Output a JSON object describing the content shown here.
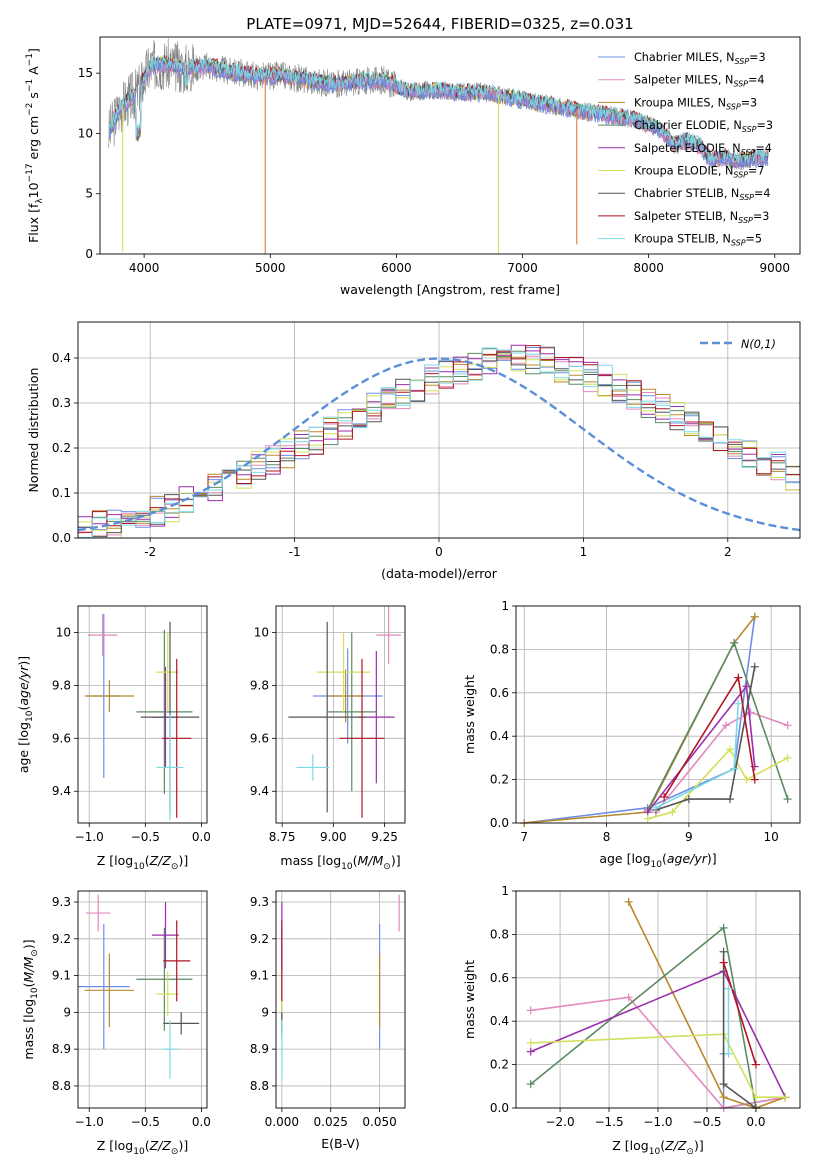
{
  "figure_title": "PLATE=0971, MJD=52644, FIBERID=0325, z=0.031",
  "colors": [
    "#6f8fe6",
    "#e389be",
    "#b8892a",
    "#5b8a62",
    "#9b2fae",
    "#d2e05b",
    "#555555",
    "#b01423",
    "#7dd9e3"
  ],
  "chart_data": [
    {
      "id": "spectrum",
      "type": "line",
      "xlabel": "wavelength [Angstrom, rest frame]",
      "ylabel": "Flux [f_λ 10^-17 erg cm^-2 s^-1 A^-1]",
      "xlim": [
        3650,
        9200
      ],
      "ylim": [
        0,
        18
      ],
      "xticks": [
        4000,
        5000,
        6000,
        7000,
        8000,
        9000
      ],
      "yticks": [
        0,
        5,
        10,
        15
      ],
      "grid": false,
      "legend_position": "top-right",
      "continuum": {
        "x": [
          3700,
          3800,
          3950,
          4050,
          4150,
          4300,
          4500,
          4700,
          4900,
          5100,
          5300,
          5500,
          5700,
          5900,
          6100,
          6300,
          6500,
          6700,
          6900,
          7100,
          7300,
          7500,
          7700,
          7900,
          8100,
          8200,
          8300,
          8400,
          8500,
          8600,
          8700,
          8800,
          8950
        ],
        "y": [
          9.5,
          12.0,
          13.5,
          15.6,
          15.8,
          15.4,
          15.6,
          15.1,
          14.8,
          14.8,
          14.4,
          14.1,
          14.3,
          14.4,
          13.4,
          13.6,
          13.4,
          13.4,
          13.0,
          12.6,
          12.2,
          11.8,
          11.5,
          11.1,
          10.3,
          9.0,
          9.4,
          9.0,
          7.8,
          8.0,
          7.7,
          7.9,
          8.1
        ]
      },
      "data_spikes": [
        {
          "x": 3830,
          "y": 0.2
        },
        {
          "x": 4960,
          "y": 0.0
        },
        {
          "x": 6810,
          "y": 0.0
        },
        {
          "x": 7430,
          "y": 0.8
        }
      ],
      "legend": [
        {
          "label": "Chabrier MILES, N",
          "sub": "SSP",
          "val": "=3"
        },
        {
          "label": "Salpeter MILES, N",
          "sub": "SSP",
          "val": "=4"
        },
        {
          "label": "Kroupa MILES, N",
          "sub": "SSP",
          "val": "=3"
        },
        {
          "label": "Chabrier ELODIE, N",
          "sub": "SSP",
          "val": "=3"
        },
        {
          "label": "Salpeter ELODIE, N",
          "sub": "SSP",
          "val": "=4"
        },
        {
          "label": "Kroupa ELODIE, N",
          "sub": "SSP",
          "val": "=7"
        },
        {
          "label": "Chabrier STELIB, N",
          "sub": "SSP",
          "val": "=4"
        },
        {
          "label": "Salpeter STELIB, N",
          "sub": "SSP",
          "val": "=3"
        },
        {
          "label": "Kroupa STELIB, N",
          "sub": "SSP",
          "val": "=5"
        }
      ]
    },
    {
      "id": "residuals",
      "type": "histogram",
      "xlabel": "(data-model)/error",
      "ylabel": "Normed distribution",
      "xlim": [
        -2.5,
        2.5
      ],
      "ylim": [
        0,
        0.48
      ],
      "xticks": [
        -2,
        -1,
        0,
        1,
        2
      ],
      "yticks": [
        0.0,
        0.1,
        0.2,
        0.3,
        0.4
      ],
      "grid": true,
      "legend_position": "top-right",
      "legend_label": "N(0,1)",
      "bin_width": 0.1,
      "bin_start": -2.5,
      "approx_counts": [
        0.02,
        0.03,
        0.03,
        0.04,
        0.05,
        0.06,
        0.07,
        0.08,
        0.1,
        0.11,
        0.13,
        0.14,
        0.16,
        0.17,
        0.19,
        0.21,
        0.22,
        0.24,
        0.25,
        0.27,
        0.29,
        0.3,
        0.32,
        0.33,
        0.35,
        0.36,
        0.37,
        0.38,
        0.39,
        0.4,
        0.4,
        0.4,
        0.39,
        0.38,
        0.37,
        0.36,
        0.35,
        0.33,
        0.32,
        0.3,
        0.29,
        0.27,
        0.25,
        0.24,
        0.22,
        0.21,
        0.19,
        0.17,
        0.16,
        0.14,
        0.13,
        0.11,
        0.1,
        0.08,
        0.07,
        0.06,
        0.05,
        0.04,
        0.03,
        0.03
      ],
      "histograms": [
        {
          "color_index": 0,
          "jitter_seed": 1
        },
        {
          "color_index": 1,
          "jitter_seed": 2
        },
        {
          "color_index": 2,
          "jitter_seed": 3
        },
        {
          "color_index": 3,
          "jitter_seed": 4
        },
        {
          "color_index": 4,
          "jitter_seed": 5
        },
        {
          "color_index": 5,
          "jitter_seed": 6
        },
        {
          "color_index": 6,
          "jitter_seed": 7
        },
        {
          "color_index": 7,
          "jitter_seed": 8
        },
        {
          "color_index": 8,
          "jitter_seed": 9
        }
      ]
    },
    {
      "id": "age_vs_Z",
      "type": "errorbar",
      "xlabel": "Z [log10(Z/Z⊙)]",
      "ylabel": "age  [log10(age/yr)]",
      "xlim": [
        -1.1,
        0.05
      ],
      "ylim": [
        9.28,
        10.1
      ],
      "xticks": [
        -1.0,
        -0.5,
        0.0
      ],
      "xticklabels": [
        "−1.0",
        "−0.5",
        "0.0"
      ],
      "yticks": [
        9.4,
        9.6,
        9.8,
        10.0
      ],
      "grid": true,
      "points": [
        {
          "c": 0,
          "x": -0.87,
          "y": 9.76,
          "dx": 0.15,
          "dy": 0.31
        },
        {
          "c": 1,
          "x": -0.88,
          "y": 9.99,
          "dx": 0.13,
          "dy": 0.08
        },
        {
          "c": 2,
          "x": -0.82,
          "y": 9.76,
          "dx": 0.22,
          "dy": 0.06
        },
        {
          "c": 3,
          "x": -0.33,
          "y": 9.7,
          "dx": 0.25,
          "dy": 0.31
        },
        {
          "c": 4,
          "x": -0.32,
          "y": 9.68,
          "dx": 0.12,
          "dy": 0.19
        },
        {
          "c": 5,
          "x": -0.3,
          "y": 9.85,
          "dx": 0.1,
          "dy": 0.15
        },
        {
          "c": 6,
          "x": -0.28,
          "y": 9.68,
          "dx": 0.26,
          "dy": 0.36
        },
        {
          "c": 7,
          "x": -0.22,
          "y": 9.6,
          "dx": 0.13,
          "dy": 0.3
        },
        {
          "c": 8,
          "x": -0.28,
          "y": 9.49,
          "dx": 0.12,
          "dy": 0.2
        }
      ]
    },
    {
      "id": "age_vs_mass",
      "type": "errorbar",
      "xlabel": "mass [log10(M/M⊙)]",
      "ylabel": "",
      "xlim": [
        8.72,
        9.35
      ],
      "ylim": [
        9.28,
        10.1
      ],
      "xticks": [
        8.75,
        9.0,
        9.25
      ],
      "xticklabels": [
        "8.75",
        "9.00",
        "9.25"
      ],
      "yticks": [
        9.4,
        9.6,
        9.8,
        10.0
      ],
      "grid": true,
      "points": [
        {
          "c": 0,
          "x": 9.07,
          "y": 9.76,
          "dx": 0.17,
          "dy": 0.18
        },
        {
          "c": 1,
          "x": 9.27,
          "y": 9.99,
          "dx": 0.06,
          "dy": 0.11
        },
        {
          "c": 2,
          "x": 9.06,
          "y": 9.76,
          "dx": 0.09,
          "dy": 0.1
        },
        {
          "c": 3,
          "x": 9.09,
          "y": 9.7,
          "dx": 0.12,
          "dy": 0.3
        },
        {
          "c": 4,
          "x": 9.21,
          "y": 9.68,
          "dx": 0.09,
          "dy": 0.25
        },
        {
          "c": 5,
          "x": 9.05,
          "y": 9.85,
          "dx": 0.13,
          "dy": 0.15
        },
        {
          "c": 6,
          "x": 8.97,
          "y": 9.68,
          "dx": 0.19,
          "dy": 0.36
        },
        {
          "c": 7,
          "x": 9.14,
          "y": 9.6,
          "dx": 0.11,
          "dy": 0.3
        },
        {
          "c": 8,
          "x": 8.9,
          "y": 9.49,
          "dx": 0.08,
          "dy": 0.05
        }
      ]
    },
    {
      "id": "mass_weight_vs_age",
      "type": "line",
      "xlabel": "age  [log10(age/yr)]",
      "ylabel": "mass weight",
      "xlim": [
        6.9,
        10.35
      ],
      "ylim": [
        0,
        1.0
      ],
      "xticks": [
        7,
        8,
        9,
        10
      ],
      "yticks": [
        0.0,
        0.2,
        0.4,
        0.6,
        0.8,
        1.0
      ],
      "grid": true,
      "series": [
        {
          "c": 0,
          "x": [
            7.0,
            8.5,
            9.55,
            9.8
          ],
          "y": [
            0.0,
            0.07,
            0.25,
            0.95
          ]
        },
        {
          "c": 1,
          "x": [
            8.6,
            9.45,
            9.75,
            10.2
          ],
          "y": [
            0.05,
            0.45,
            0.51,
            0.45
          ]
        },
        {
          "c": 2,
          "x": [
            7.0,
            8.5,
            9.55,
            9.8
          ],
          "y": [
            0.0,
            0.05,
            0.83,
            0.95
          ]
        },
        {
          "c": 3,
          "x": [
            8.5,
            9.55,
            10.2
          ],
          "y": [
            0.06,
            0.83,
            0.11
          ]
        },
        {
          "c": 4,
          "x": [
            8.5,
            9.7,
            9.8
          ],
          "y": [
            0.05,
            0.63,
            0.26
          ]
        },
        {
          "c": 5,
          "x": [
            8.5,
            8.8,
            9.5,
            9.7,
            10.2
          ],
          "y": [
            0.02,
            0.05,
            0.34,
            0.2,
            0.3
          ]
        },
        {
          "c": 6,
          "x": [
            8.6,
            9.0,
            9.5,
            9.8
          ],
          "y": [
            0.06,
            0.11,
            0.11,
            0.72
          ]
        },
        {
          "c": 7,
          "x": [
            8.7,
            9.6,
            9.8
          ],
          "y": [
            0.12,
            0.67,
            0.2
          ]
        },
        {
          "c": 8,
          "x": [
            8.6,
            9.55,
            9.6
          ],
          "y": [
            0.07,
            0.25,
            0.55
          ]
        }
      ]
    },
    {
      "id": "mass_vs_Z",
      "type": "errorbar",
      "xlabel": "Z [log10(Z/Z⊙)]",
      "ylabel": "mass [log10(M/M⊙)]",
      "xlim": [
        -1.1,
        0.05
      ],
      "ylim": [
        8.74,
        9.33
      ],
      "xticks": [
        -1.0,
        -0.5,
        0.0
      ],
      "xticklabels": [
        "−1.0",
        "−0.5",
        "0.0"
      ],
      "yticks": [
        8.8,
        8.9,
        9.0,
        9.1,
        9.2,
        9.3
      ],
      "grid": true,
      "points": [
        {
          "c": 0,
          "x": -0.87,
          "y": 9.07,
          "dx": 0.23,
          "dy": 0.17
        },
        {
          "c": 1,
          "x": -0.92,
          "y": 9.27,
          "dx": 0.11,
          "dy": 0.05
        },
        {
          "c": 2,
          "x": -0.82,
          "y": 9.06,
          "dx": 0.22,
          "dy": 0.1
        },
        {
          "c": 3,
          "x": -0.33,
          "y": 9.09,
          "dx": 0.25,
          "dy": 0.14
        },
        {
          "c": 4,
          "x": -0.32,
          "y": 9.21,
          "dx": 0.12,
          "dy": 0.09
        },
        {
          "c": 5,
          "x": -0.3,
          "y": 9.05,
          "dx": 0.1,
          "dy": 0.06
        },
        {
          "c": 6,
          "x": -0.18,
          "y": 8.97,
          "dx": 0.16,
          "dy": 0.03
        },
        {
          "c": 7,
          "x": -0.22,
          "y": 9.14,
          "dx": 0.12,
          "dy": 0.11
        },
        {
          "c": 8,
          "x": -0.28,
          "y": 8.9,
          "dx": 0.07,
          "dy": 0.08
        }
      ]
    },
    {
      "id": "mass_vs_EBV",
      "type": "errorbar",
      "xlabel": "E(B-V)",
      "ylabel": "",
      "xlim": [
        -0.003,
        0.063
      ],
      "ylim": [
        8.74,
        9.33
      ],
      "xticks": [
        0.0,
        0.025,
        0.05
      ],
      "xticklabels": [
        "0.000",
        "0.025",
        "0.050"
      ],
      "yticks": [
        8.8,
        8.9,
        9.0,
        9.1,
        9.2,
        9.3
      ],
      "grid": true,
      "points": [
        {
          "c": 0,
          "x": 0.05,
          "y": 9.07,
          "dx": 0.0,
          "dy": 0.17
        },
        {
          "c": 1,
          "x": 0.06,
          "y": 9.27,
          "dx": 0.0,
          "dy": 0.05
        },
        {
          "c": 2,
          "x": 0.05,
          "y": 9.06,
          "dx": 0.0,
          "dy": 0.1
        },
        {
          "c": 3,
          "x": 0.0,
          "y": 9.09,
          "dx": 0.0,
          "dy": 0.14
        },
        {
          "c": 4,
          "x": 0.0,
          "y": 9.21,
          "dx": 0.0,
          "dy": 0.09
        },
        {
          "c": 5,
          "x": 0.0,
          "y": 9.05,
          "dx": 0.0,
          "dy": 0.06
        },
        {
          "c": 6,
          "x": 0.0,
          "y": 8.97,
          "dx": 0.0,
          "dy": 0.03
        },
        {
          "c": 7,
          "x": 0.0,
          "y": 9.14,
          "dx": 0.0,
          "dy": 0.11
        },
        {
          "c": 8,
          "x": 0.0,
          "y": 8.9,
          "dx": 0.0,
          "dy": 0.08
        }
      ]
    },
    {
      "id": "mass_weight_vs_Z",
      "type": "line",
      "xlabel": "Z [log10(Z/Z⊙)]",
      "ylabel": "mass weight",
      "xlim": [
        -2.45,
        0.45
      ],
      "ylim": [
        0,
        1.0
      ],
      "xticks": [
        -2.0,
        -1.5,
        -1.0,
        -0.5,
        0.0
      ],
      "xticklabels": [
        "−2.0",
        "−1.5",
        "−1.0",
        "−0.5",
        "0.0"
      ],
      "yticks": [
        0.0,
        0.2,
        0.4,
        0.6,
        0.8,
        1.0
      ],
      "grid": true,
      "series": [
        {
          "c": 0,
          "x": [
            -0.33,
            -0.33,
            0.3
          ],
          "y": [
            0.25,
            0.0,
            0.05
          ]
        },
        {
          "c": 1,
          "x": [
            -2.3,
            -1.3,
            -0.33,
            0.3
          ],
          "y": [
            0.45,
            0.51,
            0.0,
            0.05
          ]
        },
        {
          "c": 2,
          "x": [
            -1.3,
            -0.33,
            0.0,
            0.3
          ],
          "y": [
            0.95,
            0.05,
            0.0,
            0.05
          ]
        },
        {
          "c": 3,
          "x": [
            -2.3,
            -0.33,
            0.0
          ],
          "y": [
            0.11,
            0.83,
            0.0
          ]
        },
        {
          "c": 4,
          "x": [
            -2.3,
            -0.33,
            0.3
          ],
          "y": [
            0.26,
            0.63,
            0.05
          ]
        },
        {
          "c": 5,
          "x": [
            -2.3,
            -0.33,
            0.0,
            0.3
          ],
          "y": [
            0.3,
            0.34,
            0.05,
            0.05
          ]
        },
        {
          "c": 6,
          "x": [
            -0.33,
            -0.33,
            0.0
          ],
          "y": [
            0.72,
            0.11,
            0.0
          ]
        },
        {
          "c": 7,
          "x": [
            -0.33,
            0.0
          ],
          "y": [
            0.67,
            0.2
          ]
        },
        {
          "c": 8,
          "x": [
            -0.28,
            -0.28
          ],
          "y": [
            0.55,
            0.25
          ]
        }
      ]
    }
  ]
}
